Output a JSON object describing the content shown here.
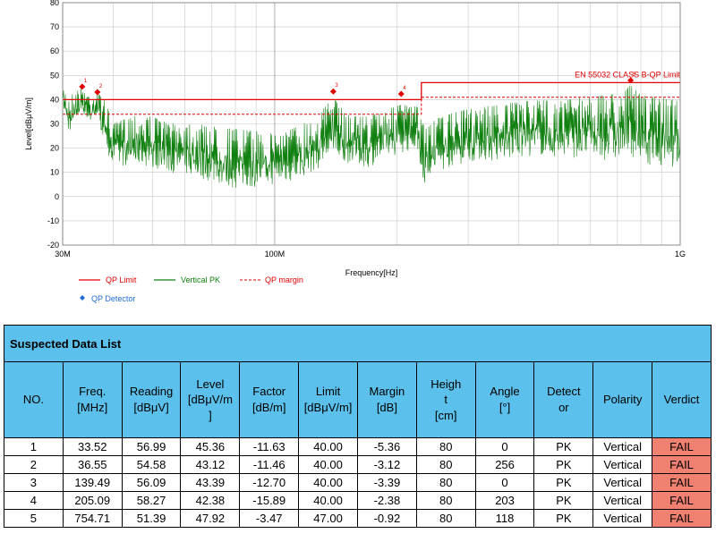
{
  "chart_data": {
    "type": "line",
    "xlabel": "Frequency[Hz]",
    "ylabel": "Level[dBμV/m]",
    "x_scale": "log",
    "xlim": [
      30,
      1000
    ],
    "ylim": [
      -20,
      80
    ],
    "y_ticks": [
      -20,
      -10,
      0,
      10,
      20,
      30,
      40,
      50,
      60,
      70,
      80
    ],
    "x_tick_labels": [
      {
        "value": 30,
        "label": "30M"
      },
      {
        "value": 100,
        "label": "100M"
      },
      {
        "value": 1000,
        "label": "1G"
      }
    ],
    "x_minor_ticks": [
      40,
      50,
      60,
      70,
      80,
      90,
      200,
      300,
      400,
      500,
      600,
      700,
      800,
      900
    ],
    "grid": true,
    "limit_label": "EN 55032 CLASS B-QP Limit",
    "series": [
      {
        "name": "QP Limit",
        "style": "solid",
        "color": "#e00000",
        "points": [
          [
            30,
            40
          ],
          [
            230,
            40
          ],
          [
            230,
            47
          ],
          [
            1000,
            47
          ]
        ]
      },
      {
        "name": "QP margin",
        "style": "dashed",
        "color": "#e00000",
        "points": [
          [
            30,
            34
          ],
          [
            230,
            34
          ],
          [
            230,
            41
          ],
          [
            1000,
            41
          ]
        ]
      },
      {
        "name": "Vertical PK",
        "style": "solid",
        "color": "#108010",
        "envelope": [
          [
            30,
            38,
            45
          ],
          [
            31,
            26,
            41
          ],
          [
            32,
            30,
            43
          ],
          [
            33.5,
            35,
            45
          ],
          [
            35,
            30,
            42
          ],
          [
            36.5,
            33,
            43
          ],
          [
            38,
            22,
            40
          ],
          [
            40,
            12,
            30
          ],
          [
            45,
            13,
            34
          ],
          [
            50,
            12,
            33
          ],
          [
            55,
            10,
            30
          ],
          [
            60,
            9,
            31
          ],
          [
            70,
            6,
            29
          ],
          [
            80,
            3,
            28
          ],
          [
            90,
            4,
            27
          ],
          [
            100,
            5,
            26
          ],
          [
            110,
            6,
            28
          ],
          [
            120,
            9,
            31
          ],
          [
            130,
            12,
            35
          ],
          [
            139.5,
            17,
            41
          ],
          [
            150,
            14,
            34
          ],
          [
            170,
            12,
            33
          ],
          [
            190,
            16,
            36
          ],
          [
            205,
            18,
            38
          ],
          [
            225,
            19,
            37
          ],
          [
            235,
            3,
            28
          ],
          [
            250,
            10,
            32
          ],
          [
            280,
            13,
            35
          ],
          [
            320,
            15,
            37
          ],
          [
            360,
            14,
            38
          ],
          [
            400,
            16,
            39
          ],
          [
            450,
            17,
            40
          ],
          [
            500,
            16,
            39
          ],
          [
            550,
            16,
            41
          ],
          [
            600,
            16,
            41
          ],
          [
            650,
            15,
            42
          ],
          [
            700,
            15,
            43
          ],
          [
            755,
            17,
            46
          ],
          [
            800,
            14,
            42
          ],
          [
            850,
            13,
            41
          ],
          [
            900,
            11,
            41
          ],
          [
            950,
            12,
            40
          ],
          [
            1000,
            13,
            41
          ]
        ]
      }
    ],
    "qp_detector": {
      "name": "QP Detector",
      "points": [
        {
          "x": 33.52,
          "y": 45.36,
          "label": "1"
        },
        {
          "x": 36.55,
          "y": 43.12,
          "label": "2"
        },
        {
          "x": 139.49,
          "y": 43.39,
          "label": "3"
        },
        {
          "x": 205.09,
          "y": 42.38,
          "label": "4"
        },
        {
          "x": 754.71,
          "y": 47.92,
          "label": "5"
        }
      ]
    },
    "legend": [
      "QP Limit",
      "Vertical PK",
      "QP margin",
      "QP Detector"
    ],
    "colors": {
      "limit": "#e00000",
      "trace": "#108010",
      "detector_legend": "#1e6bd6",
      "grid": "#c8c8c8"
    }
  },
  "table": {
    "title": "Suspected Data List",
    "headers": [
      {
        "key": "no",
        "lines": [
          "NO."
        ]
      },
      {
        "key": "freq",
        "lines": [
          "Freq.",
          "[MHz]"
        ]
      },
      {
        "key": "reading",
        "lines": [
          "Reading",
          "[dBμV]"
        ]
      },
      {
        "key": "level",
        "lines": [
          "Level",
          "[dBμV/m",
          "]"
        ]
      },
      {
        "key": "factor",
        "lines": [
          "Factor",
          "[dB/m]"
        ]
      },
      {
        "key": "limit",
        "lines": [
          "Limit",
          "[dBμV/m]"
        ]
      },
      {
        "key": "margin",
        "lines": [
          "Margin",
          "[dB]"
        ]
      },
      {
        "key": "height",
        "lines": [
          "Heigh",
          "t",
          "[cm]"
        ]
      },
      {
        "key": "angle",
        "lines": [
          "Angle",
          "[°]"
        ]
      },
      {
        "key": "detector",
        "lines": [
          "Detect",
          "or"
        ]
      },
      {
        "key": "polarity",
        "lines": [
          "Polarity"
        ]
      },
      {
        "key": "verdict",
        "lines": [
          "Verdict"
        ]
      }
    ],
    "rows": [
      [
        "1",
        "33.52",
        "56.99",
        "45.36",
        "-11.63",
        "40.00",
        "-5.36",
        "80",
        "0",
        "PK",
        "Vertical",
        "FAIL"
      ],
      [
        "2",
        "36.55",
        "54.58",
        "43.12",
        "-11.46",
        "40.00",
        "-3.12",
        "80",
        "256",
        "PK",
        "Vertical",
        "FAIL"
      ],
      [
        "3",
        "139.49",
        "56.09",
        "43.39",
        "-12.70",
        "40.00",
        "-3.39",
        "80",
        "0",
        "PK",
        "Vertical",
        "FAIL"
      ],
      [
        "4",
        "205.09",
        "58.27",
        "42.38",
        "-15.89",
        "40.00",
        "-2.38",
        "80",
        "203",
        "PK",
        "Vertical",
        "FAIL"
      ],
      [
        "5",
        "754.71",
        "51.39",
        "47.92",
        "-3.47",
        "47.00",
        "-0.92",
        "80",
        "118",
        "PK",
        "Vertical",
        "FAIL"
      ]
    ],
    "fail_color": "#f08070",
    "header_color": "#5bc0eb"
  }
}
